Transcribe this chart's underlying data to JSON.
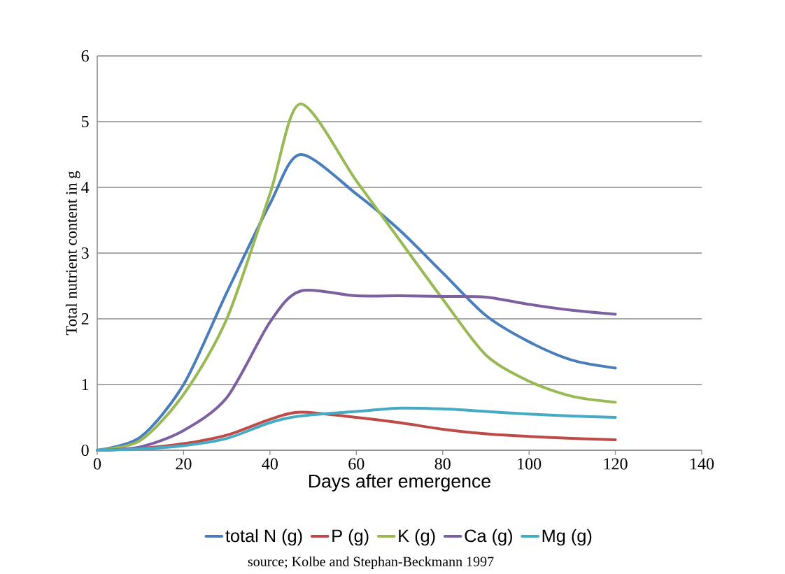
{
  "chart_data": {
    "type": "line",
    "xlabel": "Days after emergence",
    "ylabel": "Total nutrient content in g",
    "x": [
      0,
      10,
      20,
      30,
      40,
      47,
      60,
      70,
      80,
      90,
      100,
      110,
      120
    ],
    "series": [
      {
        "name": "total N (g)",
        "color": "#4a7ebb",
        "values": [
          0,
          0.2,
          1.0,
          2.4,
          3.75,
          4.5,
          3.9,
          3.35,
          2.7,
          2.05,
          1.65,
          1.37,
          1.25
        ]
      },
      {
        "name": "P (g)",
        "color": "#be4b48",
        "values": [
          0,
          0.03,
          0.1,
          0.23,
          0.47,
          0.58,
          0.5,
          0.42,
          0.32,
          0.25,
          0.21,
          0.18,
          0.16
        ]
      },
      {
        "name": "K (g)",
        "color": "#98b954",
        "values": [
          0,
          0.15,
          0.85,
          2.0,
          3.9,
          5.27,
          4.1,
          3.2,
          2.3,
          1.45,
          1.05,
          0.82,
          0.73
        ]
      },
      {
        "name": "Ca (g)",
        "color": "#7d60a0",
        "values": [
          0,
          0.05,
          0.3,
          0.8,
          1.95,
          2.42,
          2.35,
          2.35,
          2.34,
          2.33,
          2.22,
          2.13,
          2.07
        ]
      },
      {
        "name": "Mg (g)",
        "color": "#46aac5",
        "values": [
          0,
          0.02,
          0.07,
          0.18,
          0.42,
          0.52,
          0.59,
          0.64,
          0.63,
          0.59,
          0.55,
          0.52,
          0.5
        ]
      }
    ],
    "xlim": [
      0,
      140
    ],
    "xticks": [
      0,
      20,
      40,
      60,
      80,
      100,
      120,
      140
    ],
    "ylim": [
      0,
      6
    ],
    "yticks": [
      0,
      1,
      2,
      3,
      4,
      5,
      6
    ],
    "grid": "y",
    "legend": "bottom",
    "marker": "none",
    "line_style": "solid",
    "annotations": [
      "source; Kolbe and Stephan-Beckmann 1997"
    ]
  }
}
